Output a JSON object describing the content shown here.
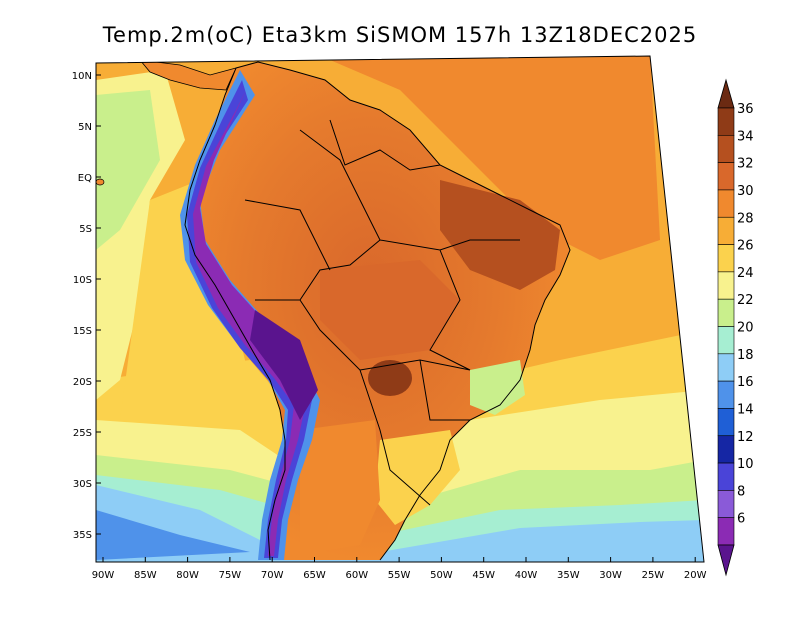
{
  "title": "Temp.2m(oC) Eta3km SiSMOM 157h 13Z18DEC2025",
  "axes": {
    "lat_labels": [
      "10N",
      "5N",
      "EQ",
      "5S",
      "10S",
      "15S",
      "20S",
      "25S",
      "30S",
      "35S"
    ],
    "lon_labels": [
      "90W",
      "85W",
      "80W",
      "75W",
      "70W",
      "65W",
      "60W",
      "55W",
      "50W",
      "45W",
      "40W",
      "35W",
      "30W",
      "25W",
      "20W"
    ]
  },
  "colorbar": {
    "labels": [
      "36",
      "34",
      "32",
      "30",
      "28",
      "26",
      "24",
      "22",
      "20",
      "18",
      "16",
      "14",
      "12",
      "10",
      "8",
      "6"
    ],
    "colors": [
      "#6b2a12",
      "#8f3b17",
      "#b5501f",
      "#d9682b",
      "#f0892e",
      "#f7ad36",
      "#fbd24d",
      "#f8f28e",
      "#c9ef8c",
      "#a6eed2",
      "#8ecdf6",
      "#4f92ea",
      "#1f5fd6",
      "#1526a4",
      "#4a44d8",
      "#8a5ad8",
      "#8b2bb4",
      "#5a148e"
    ]
  }
}
